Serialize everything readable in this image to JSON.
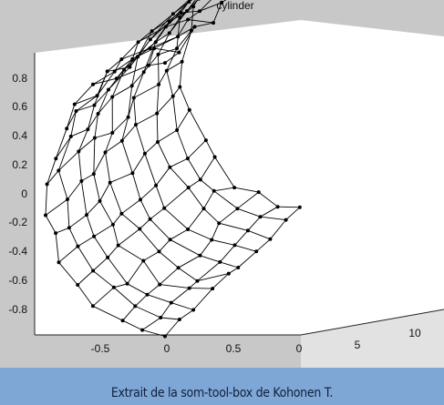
{
  "chart_data": {
    "type": "line3d",
    "title": "cylinder",
    "description_of_data": "SOM lattice mapped onto a half-cylinder surface",
    "x_ticks": [
      "-0.5",
      "0",
      "0.5",
      "0"
    ],
    "y_ticks": [
      "0.8",
      "0.6",
      "0.4",
      "0.2",
      "0",
      "-0.2",
      "-0.4",
      "-0.6",
      "-0.8"
    ],
    "z_ticks": [
      "5",
      "10"
    ],
    "grid": false,
    "lattice": {
      "rows": 16,
      "cols": 10,
      "z_range": [
        0,
        12
      ],
      "angle_range_deg": [
        90,
        270
      ]
    }
  },
  "caption": "Extrait de la som-tool-box de Kohonen T.",
  "colors": {
    "background": "#c8c8c8",
    "pane": "#ffffff",
    "lines": "#000000",
    "caption_bar": "#7fa7d6"
  }
}
